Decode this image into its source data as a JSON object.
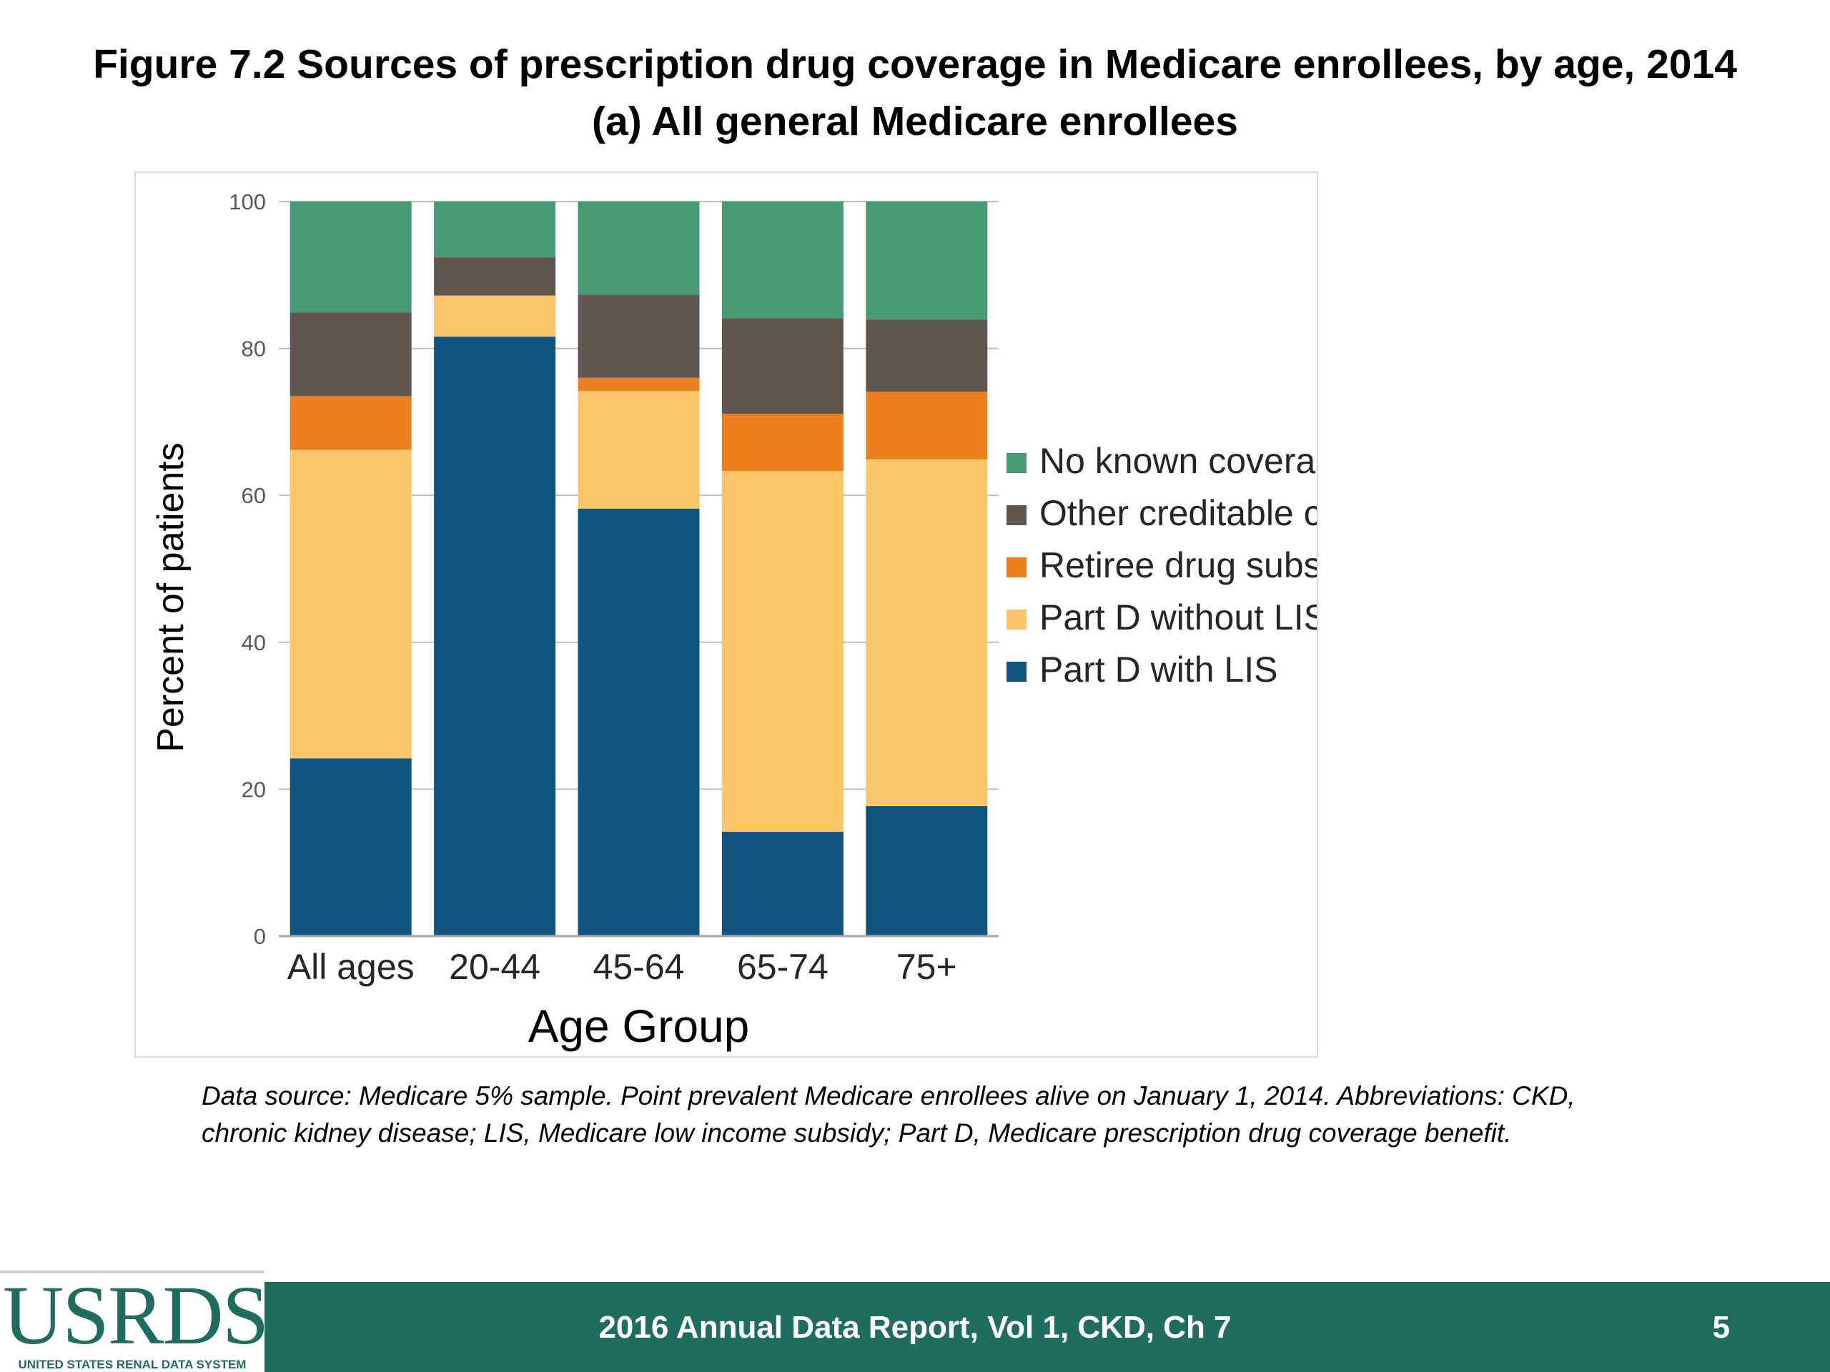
{
  "header": {
    "title_line1": "Figure 7.2 Sources of prescription drug coverage in Medicare enrollees, by age, 2014",
    "title_line2": "(a) All general Medicare enrollees"
  },
  "chart_data": {
    "type": "bar",
    "stacked": true,
    "categories": [
      "All ages",
      "20-44",
      "45-64",
      "65-74",
      "75+"
    ],
    "series": [
      {
        "name": "Part D with LIS",
        "color": "#125480",
        "values": [
          24.2,
          81.6,
          58.2,
          14.2,
          17.7
        ]
      },
      {
        "name": "Part D without LIS",
        "color": "#fcc56a",
        "values": [
          42.0,
          5.6,
          16.0,
          49.1,
          47.2
        ]
      },
      {
        "name": "Retiree drug subsidy",
        "color": "#ec801f",
        "values": [
          7.3,
          0.0,
          1.8,
          7.8,
          9.2
        ]
      },
      {
        "name": "Other creditable coverage",
        "color": "#62574f",
        "values": [
          11.4,
          5.2,
          11.3,
          13.0,
          9.8
        ]
      },
      {
        "name": "No known coverage",
        "color": "#469b75",
        "values": [
          15.1,
          7.6,
          12.7,
          15.9,
          16.1
        ]
      }
    ],
    "legend_order": [
      "No known coverage",
      "Other creditable coverage",
      "Retiree drug subsidy",
      "Part D without LIS",
      "Part D with LIS"
    ],
    "xlabel": "Age Group",
    "ylabel": "Percent of patients",
    "ylim": [
      0,
      100
    ],
    "yticks": [
      0,
      20,
      40,
      60,
      80,
      100
    ],
    "grid": true,
    "legend_position": "right"
  },
  "source_note": {
    "line1": "Data source: Medicare 5% sample. Point prevalent Medicare enrollees alive on January 1, 2014. Abbreviations: CKD,",
    "line2": "chronic kidney disease; LIS, Medicare low income subsidy; Part D, Medicare prescription drug coverage benefit."
  },
  "footer": {
    "logo_text": "USRDS",
    "logo_subtext": "UNITED STATES RENAL DATA SYSTEM",
    "report_label": "2016 Annual Data Report, Vol 1, CKD, Ch 7",
    "page_number": "5"
  }
}
